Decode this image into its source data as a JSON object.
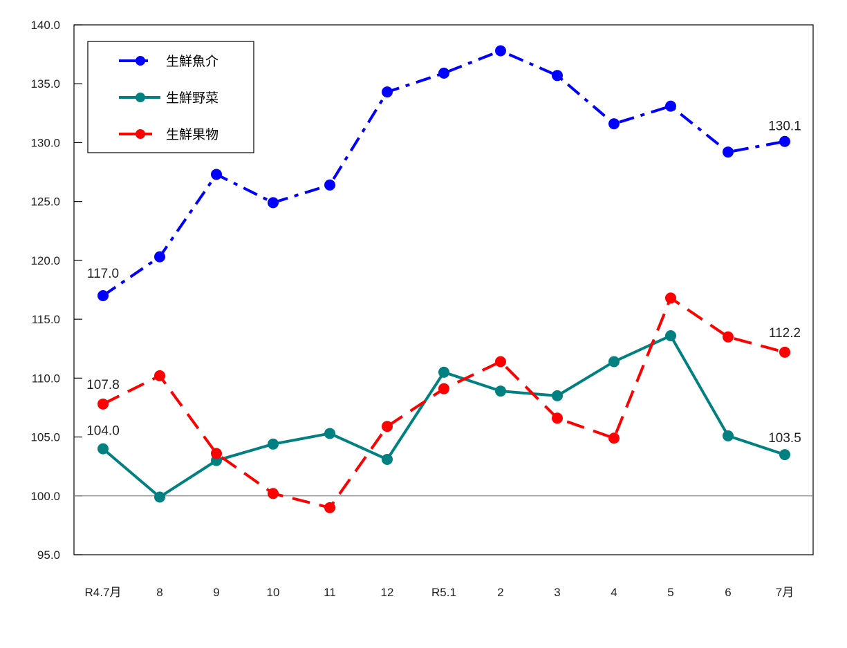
{
  "chart_data": {
    "type": "line",
    "title": "",
    "xlabel": "",
    "ylabel": "",
    "categories": [
      "R4.7月",
      "8",
      "9",
      "10",
      "11",
      "12",
      "R5.1",
      "2",
      "3",
      "4",
      "5",
      "6",
      "7月"
    ],
    "ylim": [
      95.0,
      140.0
    ],
    "yticks": [
      "95.0",
      "100.0",
      "105.0",
      "110.0",
      "115.0",
      "120.0",
      "125.0",
      "130.0",
      "135.0",
      "140.0"
    ],
    "reference_line": 100.0,
    "grid": false,
    "legend_position": "upper-left inside",
    "series": [
      {
        "name": "生鮮魚介",
        "color": "#0000ff",
        "style": "dash-dot",
        "values": [
          117.0,
          120.3,
          127.3,
          124.9,
          126.4,
          134.3,
          135.9,
          137.8,
          135.7,
          131.6,
          133.1,
          129.2,
          130.1
        ],
        "labels": {
          "0": "117.0",
          "12": "130.1"
        }
      },
      {
        "name": "生鮮野菜",
        "color": "#008080",
        "style": "solid",
        "values": [
          104.0,
          99.9,
          103.0,
          104.4,
          105.3,
          103.1,
          110.5,
          108.9,
          108.5,
          111.4,
          113.6,
          105.1,
          103.5
        ],
        "labels": {
          "0": "104.0",
          "12": "103.5"
        }
      },
      {
        "name": "生鮮果物",
        "color": "#ff0000",
        "style": "dashed",
        "values": [
          107.8,
          110.2,
          103.6,
          100.2,
          99.0,
          105.9,
          109.1,
          111.4,
          106.6,
          104.9,
          116.8,
          113.5,
          112.2
        ],
        "labels": {
          "0": "107.8",
          "12": "112.2"
        }
      }
    ]
  }
}
